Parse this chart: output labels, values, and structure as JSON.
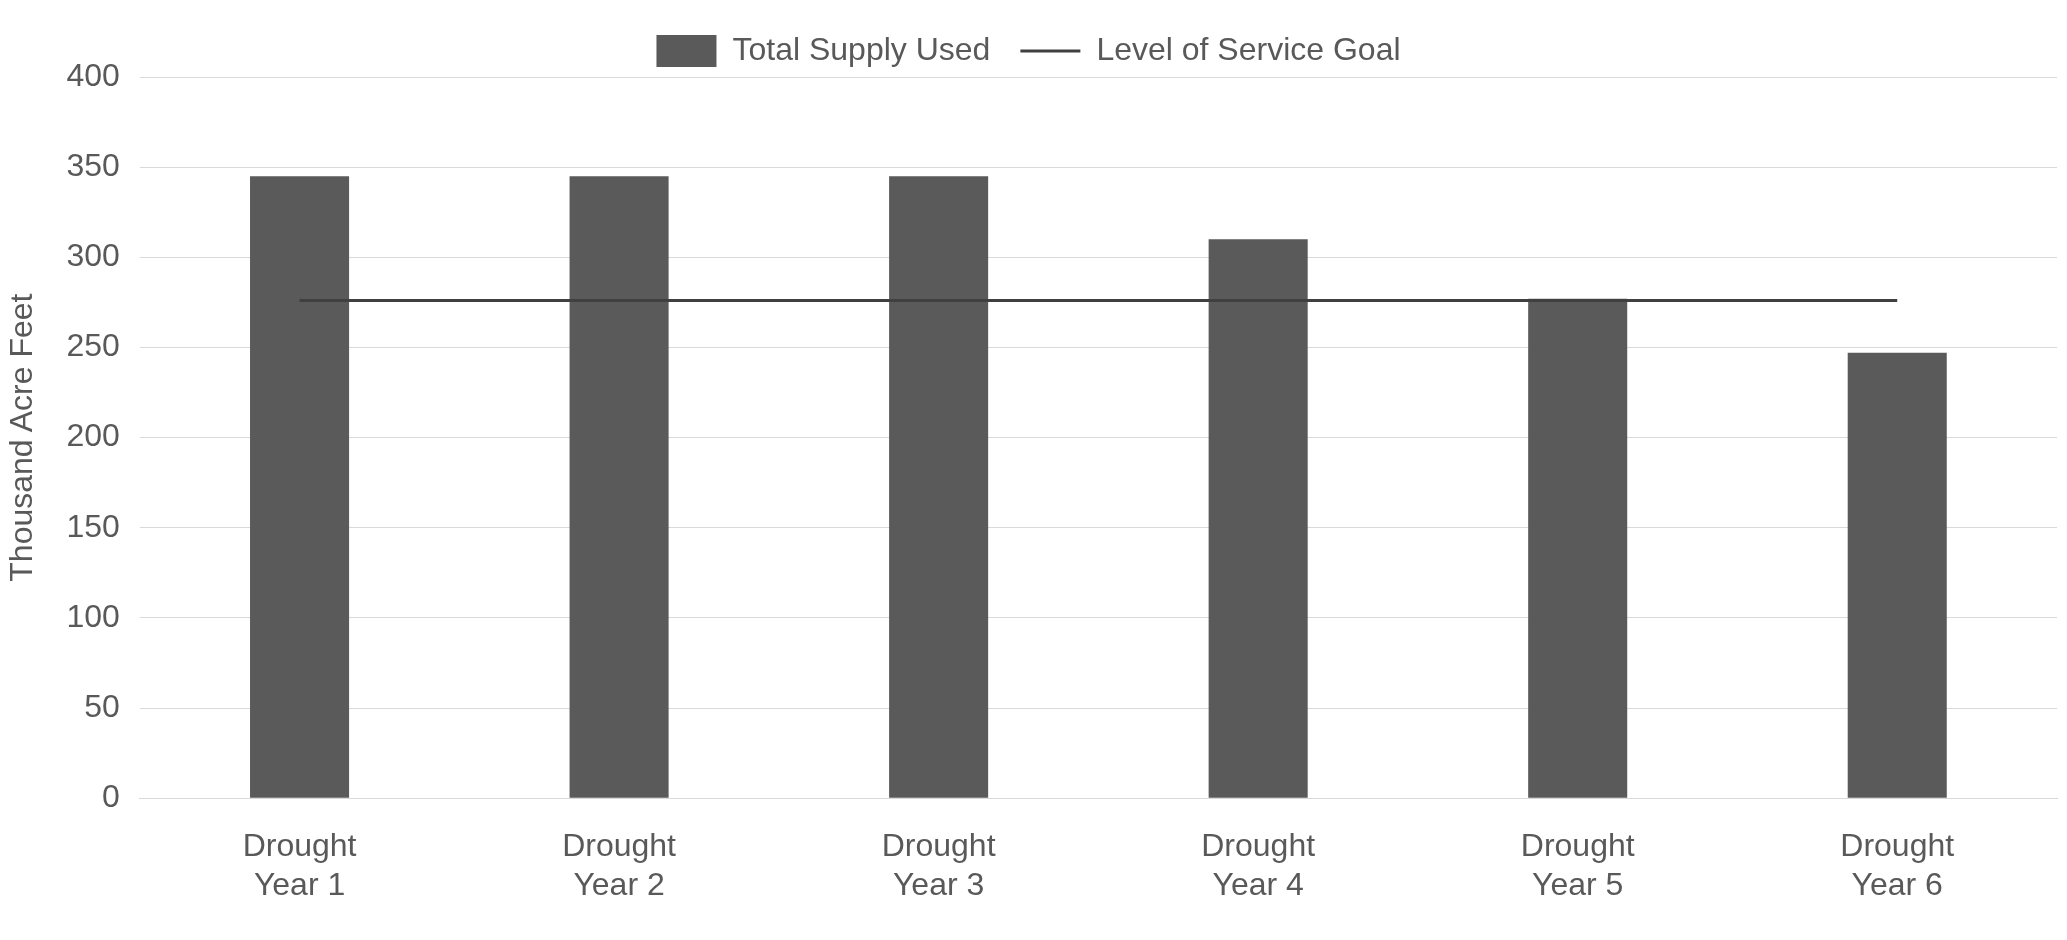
{
  "chart_data": {
    "type": "bar",
    "ylabel": "Thousand Acre Feet",
    "categories": [
      "Drought Year 1",
      "Drought Year 2",
      "Drought Year 3",
      "Drought Year 4",
      "Drought Year 5",
      "Drought Year 6"
    ],
    "series": [
      {
        "name": "Total Supply Used",
        "color": "#5a5a5a",
        "values": [
          345,
          345,
          345,
          310,
          277,
          247
        ]
      },
      {
        "name": "Level of Service Goal",
        "type": "line",
        "color": "#404040",
        "values": [
          276,
          276,
          276,
          276,
          276,
          276
        ]
      }
    ],
    "ylim": [
      0,
      400
    ],
    "yticks": [
      0,
      50,
      100,
      150,
      200,
      250,
      300,
      350,
      400
    ],
    "grid": "y",
    "legend": "top",
    "marker": "none"
  }
}
